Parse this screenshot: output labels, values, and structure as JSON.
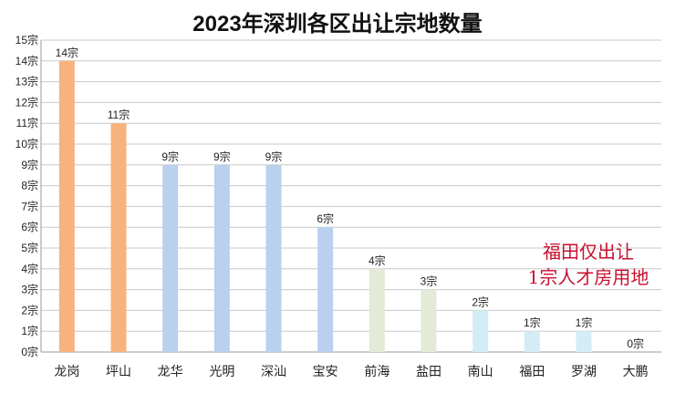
{
  "chart_data": {
    "type": "bar",
    "title": "2023年深圳各区出让宗地数量",
    "categories": [
      "龙岗",
      "坪山",
      "龙华",
      "光明",
      "深汕",
      "宝安",
      "前海",
      "盐田",
      "南山",
      "福田",
      "罗湖",
      "大鹏"
    ],
    "values": [
      14,
      11,
      9,
      9,
      9,
      6,
      4,
      3,
      2,
      1,
      1,
      0
    ],
    "value_labels": [
      "14宗",
      "11宗",
      "9宗",
      "9宗",
      "9宗",
      "6宗",
      "4宗",
      "3宗",
      "2宗",
      "1宗",
      "1宗",
      "0宗"
    ],
    "bar_colors": [
      "#f8b27d",
      "#f8b27d",
      "#b9d0ee",
      "#b9d0ee",
      "#b9d0ee",
      "#b9d0ee",
      "#e3ebd8",
      "#e3ebd8",
      "#d4ecf6",
      "#d4ecf6",
      "#d4ecf6",
      "#d4ecf6"
    ],
    "y_ticks": [
      "0宗",
      "1宗",
      "2宗",
      "3宗",
      "4宗",
      "5宗",
      "6宗",
      "7宗",
      "8宗",
      "9宗",
      "10宗",
      "11宗",
      "12宗",
      "13宗",
      "14宗",
      "15宗"
    ],
    "ylim": [
      0,
      15
    ],
    "grid": true,
    "annotation": [
      "福田仅出让",
      "1宗人才房用地"
    ],
    "annotation_color": "#c8102e"
  }
}
